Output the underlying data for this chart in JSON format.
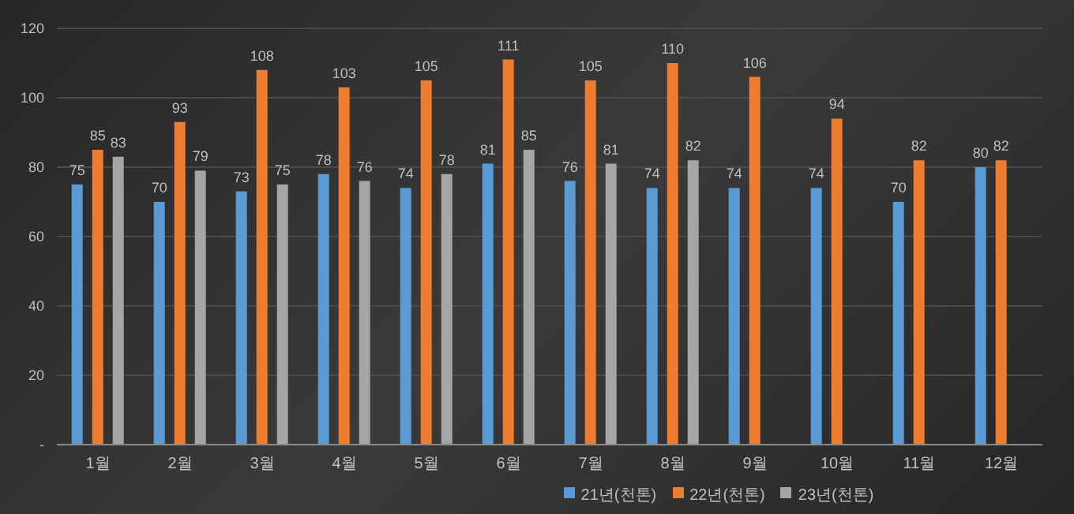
{
  "chart_data": {
    "type": "bar",
    "categories": [
      "1월",
      "2월",
      "3월",
      "4월",
      "5월",
      "6월",
      "7월",
      "8월",
      "9월",
      "10월",
      "11월",
      "12월"
    ],
    "series": [
      {
        "name": "21년(천톤)",
        "color": "#5b9bd5",
        "values": [
          75,
          70,
          73,
          78,
          74,
          81,
          76,
          74,
          74,
          74,
          70,
          80
        ]
      },
      {
        "name": "22년(천톤)",
        "color": "#ed7d31",
        "values": [
          85,
          93,
          108,
          103,
          105,
          111,
          105,
          110,
          106,
          94,
          82,
          82
        ]
      },
      {
        "name": "23년(천톤)",
        "color": "#a5a5a5",
        "values": [
          83,
          79,
          75,
          76,
          78,
          85,
          81,
          82,
          null,
          null,
          null,
          null
        ]
      }
    ],
    "ylim": [
      0,
      120
    ],
    "yticks": [
      {
        "value": 0,
        "label": "-"
      },
      20,
      40,
      60,
      80,
      100,
      120
    ],
    "grid": "y",
    "legend": "bottom",
    "data_labels": true
  }
}
